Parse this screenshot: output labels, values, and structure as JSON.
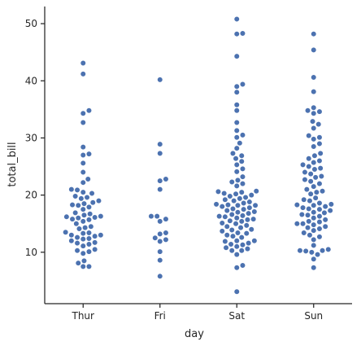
{
  "chart_data": {
    "type": "scatter",
    "subtype": "swarm",
    "xlabel": "day",
    "ylabel": "total_bill",
    "categories": [
      "Thur",
      "Fri",
      "Sat",
      "Sun"
    ],
    "ylim": [
      1,
      53
    ],
    "yticks": [
      10,
      20,
      30,
      40,
      50
    ],
    "grid": false,
    "color": "#4c72b0",
    "series": [
      {
        "category": "Thur",
        "values": [
          7.5,
          7.5,
          8.1,
          8.5,
          9.8,
          10.1,
          10.3,
          10.5,
          11.1,
          11.4,
          11.6,
          11.7,
          12.0,
          12.3,
          12.4,
          12.6,
          12.8,
          13.0,
          13.0,
          13.3,
          13.4,
          13.5,
          14.1,
          14.3,
          14.5,
          15.0,
          15.4,
          15.7,
          15.8,
          16.0,
          16.1,
          16.2,
          16.3,
          16.5,
          16.7,
          16.9,
          17.5,
          17.9,
          18.2,
          18.3,
          18.5,
          18.7,
          19.0,
          19.4,
          19.6,
          19.8,
          20.3,
          20.5,
          20.9,
          21.0,
          22.2,
          22.8,
          24.0,
          25.6,
          27.0,
          27.2,
          28.4,
          32.7,
          34.3,
          34.8,
          41.2,
          43.1
        ]
      },
      {
        "category": "Fri",
        "values": [
          5.8,
          8.6,
          10.1,
          11.9,
          12.2,
          12.5,
          13.2,
          13.4,
          15.4,
          15.8,
          16.3,
          16.3,
          21.0,
          22.5,
          22.8,
          27.3,
          28.9,
          40.2
        ]
      },
      {
        "category": "Sat",
        "values": [
          3.1,
          7.3,
          7.7,
          9.6,
          10.3,
          10.3,
          10.6,
          10.8,
          11.0,
          11.3,
          11.4,
          11.6,
          11.9,
          12.0,
          12.0,
          12.6,
          12.8,
          13.0,
          13.3,
          13.4,
          13.7,
          13.9,
          14.0,
          14.3,
          14.5,
          14.7,
          15.0,
          15.1,
          15.4,
          15.5,
          15.7,
          15.8,
          16.0,
          16.2,
          16.3,
          16.4,
          16.6,
          16.8,
          17.0,
          17.1,
          17.3,
          17.5,
          17.6,
          17.8,
          18.0,
          18.2,
          18.2,
          18.3,
          18.4,
          18.6,
          18.8,
          19.0,
          19.2,
          19.4,
          19.6,
          19.8,
          20.0,
          20.2,
          20.3,
          20.5,
          20.6,
          20.7,
          21.6,
          22.0,
          22.3,
          22.6,
          23.2,
          24.1,
          24.6,
          25.3,
          25.9,
          26.4,
          26.9,
          27.3,
          28.2,
          29.1,
          30.1,
          30.5,
          31.3,
          32.7,
          34.8,
          35.8,
          38.0,
          39.0,
          39.4,
          44.3,
          48.2,
          48.3,
          50.8
        ]
      },
      {
        "category": "Sun",
        "values": [
          7.3,
          8.8,
          9.6,
          10.0,
          10.2,
          10.3,
          10.3,
          10.5,
          11.2,
          12.2,
          12.7,
          13.0,
          13.4,
          13.8,
          14.1,
          14.3,
          14.5,
          14.8,
          15.0,
          15.0,
          15.3,
          15.4,
          15.7,
          16.0,
          16.3,
          16.5,
          16.6,
          16.9,
          17.0,
          17.3,
          17.5,
          17.6,
          17.8,
          18.0,
          18.2,
          18.3,
          18.4,
          18.6,
          19.0,
          19.2,
          19.5,
          20.2,
          20.5,
          20.7,
          21.0,
          21.5,
          22.0,
          22.4,
          22.7,
          23.1,
          23.3,
          23.7,
          24.0,
          24.5,
          24.7,
          25.0,
          25.3,
          25.7,
          26.0,
          26.4,
          26.9,
          27.3,
          28.5,
          29.0,
          29.8,
          30.1,
          30.4,
          31.7,
          32.4,
          32.9,
          34.3,
          34.6,
          34.8,
          35.3,
          38.1,
          40.6,
          45.4,
          48.2
        ]
      }
    ]
  }
}
